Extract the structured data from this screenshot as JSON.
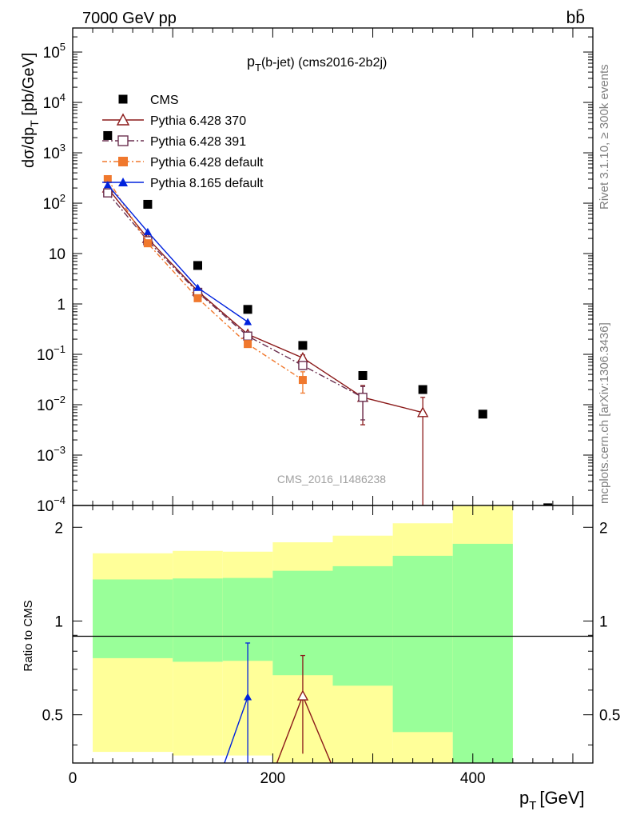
{
  "header": {
    "energy_label": "7000 GeV pp",
    "process_label": "bb̄",
    "side_label_top": "Rivet 3.1.10, ≥ 300k events",
    "side_label_bottom": "mcplots.cern.ch [arXiv:1306.3436]",
    "watermark": "CMS_2016_I1486238"
  },
  "chart_data": [
    {
      "type": "scatter",
      "panel": "main",
      "title_main": "p",
      "title_sub": "T",
      "title_rest": "(b-jet) (cms2016-2b2j)",
      "ylabel": "dσ/dp_T [pb/GeV]",
      "yscale": "log",
      "ylim": [
        0.0001,
        300000
      ],
      "xlim": [
        0,
        520
      ],
      "y_ticks": [
        {
          "value": 100000,
          "label": "10^5"
        },
        {
          "value": 10000,
          "label": "10^4"
        },
        {
          "value": 1000,
          "label": "10^3"
        },
        {
          "value": 100,
          "label": "10^2"
        },
        {
          "value": 10,
          "label": "10"
        },
        {
          "value": 1,
          "label": "1"
        },
        {
          "value": 0.1,
          "label": "10^-1"
        },
        {
          "value": 0.01,
          "label": "10^-2"
        },
        {
          "value": 0.001,
          "label": "10^-3"
        },
        {
          "value": 0.0001,
          "label": "10^-4"
        }
      ],
      "legend_position": "top-left",
      "series": [
        {
          "name": "CMS",
          "color": "#000000",
          "marker": "square",
          "x": [
            35,
            75,
            125,
            175,
            230,
            290,
            350,
            410,
            475
          ],
          "y": [
            2200,
            95,
            5.8,
            0.78,
            0.15,
            0.038,
            0.02,
            0.0065,
            9e-05
          ]
        },
        {
          "name": "Pythia 6.428 370",
          "color": "#8B1A1A",
          "marker": "open-triangle",
          "dash": "",
          "x": [
            35,
            75,
            125,
            175,
            230,
            290,
            350
          ],
          "y": [
            200,
            20,
            1.8,
            0.25,
            0.085,
            0.014,
            0.007
          ],
          "err_low": [
            0,
            0,
            0,
            0,
            0.012,
            0.01,
            0.007
          ],
          "err_high": [
            0,
            0,
            0,
            0,
            0.012,
            0.01,
            0.007
          ]
        },
        {
          "name": "Pythia 6.428 391",
          "color": "#6B3050",
          "marker": "open-square",
          "dash": "8,3,2,3",
          "x": [
            35,
            75,
            125,
            175,
            230,
            290
          ],
          "y": [
            160,
            18,
            1.7,
            0.23,
            0.06,
            0.014
          ],
          "err_low": [
            0,
            0,
            0,
            0,
            0.01,
            0.009
          ],
          "err_high": [
            0,
            0,
            0,
            0,
            0.01,
            0.009
          ]
        },
        {
          "name": "Pythia 6.428 default",
          "color": "#F0782D",
          "marker": "filled-square",
          "dash": "6,3,2,3",
          "x": [
            35,
            75,
            125,
            175,
            230
          ],
          "y": [
            300,
            16,
            1.3,
            0.16,
            0.031
          ],
          "err_low": [
            0,
            0,
            0,
            0,
            0.014
          ],
          "err_high": [
            0,
            0,
            0,
            0,
            0.014
          ]
        },
        {
          "name": "Pythia 8.165 default",
          "color": "#0022DD",
          "marker": "filled-triangle",
          "dash": "",
          "x": [
            35,
            75,
            125,
            175
          ],
          "y": [
            230,
            27,
            2.1,
            0.44
          ]
        }
      ]
    },
    {
      "type": "line",
      "panel": "ratio",
      "ylabel": "Ratio to CMS",
      "xlabel_main": "p",
      "xlabel_sub": "T",
      "xlabel_rest": "[GeV]",
      "ylim": [
        0.35,
        2.35
      ],
      "y_ticks": [
        0.5,
        1,
        2
      ],
      "x_ticks": [
        0,
        200,
        400
      ],
      "uncertainty_bins": [
        {
          "x0": 20,
          "x1": 100,
          "green_low": 0.76,
          "green_high": 1.36,
          "yellow_low": 0.38,
          "yellow_high": 1.65
        },
        {
          "x0": 100,
          "x1": 150,
          "green_low": 0.74,
          "green_high": 1.37,
          "yellow_low": 0.37,
          "yellow_high": 1.68
        },
        {
          "x0": 150,
          "x1": 200,
          "green_low": 0.745,
          "green_high": 1.375,
          "yellow_low": 0.37,
          "yellow_high": 1.67
        },
        {
          "x0": 200,
          "x1": 260,
          "green_low": 0.67,
          "green_high": 1.45,
          "yellow_low": 0.35,
          "yellow_high": 1.79
        },
        {
          "x0": 260,
          "x1": 320,
          "green_low": 0.62,
          "green_high": 1.5,
          "yellow_low": 0.35,
          "yellow_high": 1.88
        },
        {
          "x0": 320,
          "x1": 380,
          "green_low": 0.44,
          "green_high": 1.62,
          "yellow_low": 0.35,
          "yellow_high": 2.06
        },
        {
          "x0": 380,
          "x1": 440,
          "green_low": 0.35,
          "green_high": 1.77,
          "yellow_low": 0.35,
          "yellow_high": 2.35
        }
      ],
      "series": [
        {
          "name": "Pythia 8.165 default",
          "color": "#0022DD",
          "marker": "filled-triangle",
          "x": [
            125,
            175
          ],
          "y": [
            0.2,
            0.57
          ],
          "err_low": [
            0,
            0.25
          ],
          "err_high": [
            0,
            0.28
          ]
        },
        {
          "name": "Pythia 6.428 370",
          "color": "#8B1A1A",
          "marker": "open-triangle",
          "x": [
            175,
            230,
            290
          ],
          "y": [
            0.2,
            0.575,
            0.2
          ],
          "err_low": [
            0,
            0.2,
            0
          ],
          "err_high": [
            0,
            0.2,
            0
          ]
        }
      ]
    }
  ]
}
